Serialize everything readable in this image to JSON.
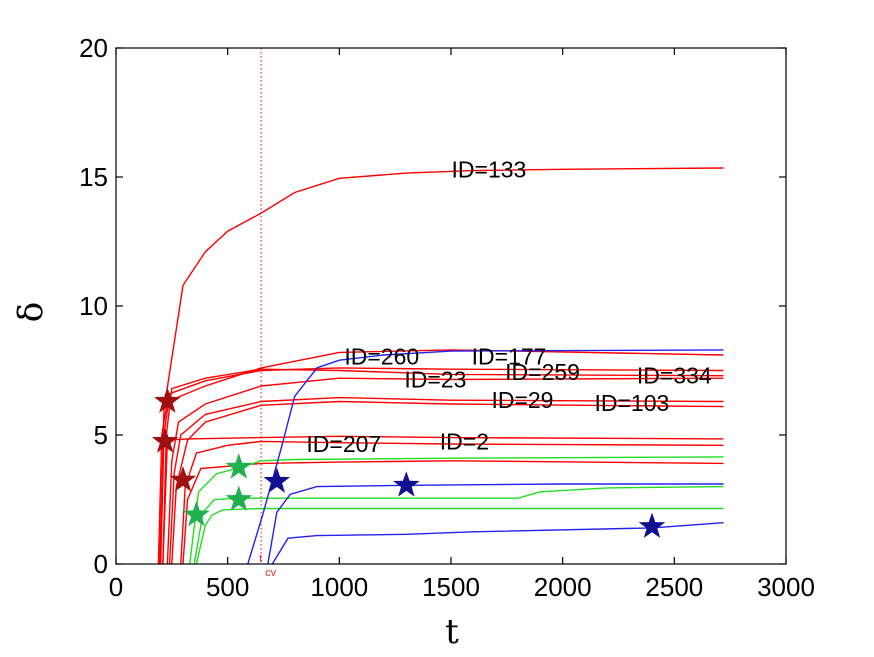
{
  "chart_data": {
    "type": "line",
    "xlabel": "t",
    "ylabel": "δ",
    "xlim": [
      0,
      3000
    ],
    "ylim": [
      0,
      20
    ],
    "xticks": [
      0,
      500,
      1000,
      1500,
      2000,
      2500,
      3000
    ],
    "yticks": [
      0,
      5,
      10,
      15,
      20
    ],
    "grid": false,
    "vline": {
      "x": 650,
      "label": "t",
      "sublabel": "cv",
      "color": "#ff3030"
    },
    "colors": {
      "red": "#ff0000",
      "green": "#22dd22",
      "blue": "#2222ee",
      "star_red": "#a01010",
      "star_green": "#20b050",
      "star_blue": "#101090"
    },
    "series": [
      {
        "color": "red",
        "values": [
          [
            195,
            0
          ],
          [
            215,
            6
          ],
          [
            300,
            10.8
          ],
          [
            400,
            12.1
          ],
          [
            500,
            12.9
          ],
          [
            650,
            13.6
          ],
          [
            800,
            14.4
          ],
          [
            1000,
            14.95
          ],
          [
            1300,
            15.15
          ],
          [
            1600,
            15.25
          ],
          [
            2000,
            15.3
          ],
          [
            2720,
            15.35
          ]
        ]
      },
      {
        "color": "red",
        "values": [
          [
            190,
            0
          ],
          [
            205,
            5
          ],
          [
            230,
            6.3
          ],
          [
            400,
            6.9
          ],
          [
            650,
            7.6
          ],
          [
            1000,
            8.2
          ],
          [
            1500,
            8.3
          ],
          [
            2720,
            8.1
          ]
        ]
      },
      {
        "color": "red",
        "values": [
          [
            200,
            0
          ],
          [
            215,
            5
          ],
          [
            240,
            6.6
          ],
          [
            400,
            7.1
          ],
          [
            650,
            7.5
          ],
          [
            1000,
            7.6
          ],
          [
            1500,
            7.55
          ],
          [
            2720,
            7.5
          ]
        ]
      },
      {
        "color": "red",
        "values": [
          [
            210,
            0
          ],
          [
            225,
            5
          ],
          [
            250,
            6.8
          ],
          [
            400,
            7.2
          ],
          [
            650,
            7.55
          ],
          [
            1000,
            7.5
          ],
          [
            1500,
            7.35
          ],
          [
            2720,
            7.3
          ]
        ]
      },
      {
        "color": "red",
        "values": [
          [
            230,
            0
          ],
          [
            250,
            4
          ],
          [
            280,
            5.5
          ],
          [
            400,
            6.2
          ],
          [
            650,
            6.9
          ],
          [
            1000,
            7.2
          ],
          [
            1500,
            7.15
          ],
          [
            2720,
            7.2
          ]
        ]
      },
      {
        "color": "red",
        "values": [
          [
            240,
            0
          ],
          [
            260,
            3.5
          ],
          [
            290,
            5.0
          ],
          [
            400,
            5.8
          ],
          [
            650,
            6.3
          ],
          [
            1000,
            6.45
          ],
          [
            1500,
            6.35
          ],
          [
            2720,
            6.3
          ]
        ]
      },
      {
        "color": "red",
        "values": [
          [
            250,
            0
          ],
          [
            270,
            3
          ],
          [
            320,
            4.8
          ],
          [
            400,
            5.5
          ],
          [
            650,
            6.15
          ],
          [
            1000,
            6.3
          ],
          [
            1500,
            6.2
          ],
          [
            2720,
            6.1
          ]
        ]
      },
      {
        "color": "red",
        "values": [
          [
            210,
            0
          ],
          [
            230,
            4.8
          ],
          [
            320,
            4.85
          ],
          [
            650,
            4.9
          ],
          [
            1000,
            4.95
          ],
          [
            1500,
            4.9
          ],
          [
            2720,
            4.85
          ]
        ]
      },
      {
        "color": "red",
        "values": [
          [
            290,
            0
          ],
          [
            310,
            3
          ],
          [
            360,
            4.3
          ],
          [
            500,
            4.6
          ],
          [
            650,
            4.75
          ],
          [
            1000,
            4.7
          ],
          [
            1500,
            4.65
          ],
          [
            2720,
            4.6
          ]
        ]
      },
      {
        "color": "red",
        "values": [
          [
            300,
            0
          ],
          [
            320,
            2.5
          ],
          [
            380,
            3.7
          ],
          [
            650,
            3.9
          ],
          [
            1000,
            3.95
          ],
          [
            1500,
            4.0
          ],
          [
            2720,
            3.9
          ]
        ]
      },
      {
        "color": "green",
        "values": [
          [
            330,
            0
          ],
          [
            370,
            2.8
          ],
          [
            450,
            3.5
          ],
          [
            560,
            3.75
          ],
          [
            650,
            4.0
          ],
          [
            800,
            4.05
          ],
          [
            1500,
            4.1
          ],
          [
            2720,
            4.15
          ]
        ]
      },
      {
        "color": "green",
        "values": [
          [
            350,
            0
          ],
          [
            390,
            2
          ],
          [
            440,
            2.5
          ],
          [
            560,
            2.55
          ],
          [
            1000,
            2.55
          ],
          [
            1800,
            2.55
          ],
          [
            1900,
            2.8
          ],
          [
            2200,
            2.95
          ],
          [
            2720,
            3.0
          ]
        ]
      },
      {
        "color": "green",
        "values": [
          [
            360,
            0
          ],
          [
            400,
            1.5
          ],
          [
            430,
            1.9
          ],
          [
            480,
            2.1
          ],
          [
            650,
            2.15
          ],
          [
            1000,
            2.15
          ],
          [
            2720,
            2.15
          ]
        ]
      },
      {
        "color": "blue",
        "values": [
          [
            590,
            0
          ],
          [
            660,
            2
          ],
          [
            740,
            4.5
          ],
          [
            800,
            6.5
          ],
          [
            900,
            7.6
          ],
          [
            1000,
            7.9
          ],
          [
            1200,
            8.1
          ],
          [
            1500,
            8.25
          ],
          [
            2720,
            8.3
          ]
        ]
      },
      {
        "color": "blue",
        "values": [
          [
            680,
            0
          ],
          [
            720,
            2
          ],
          [
            780,
            2.7
          ],
          [
            900,
            3.0
          ],
          [
            1300,
            3.05
          ],
          [
            2000,
            3.1
          ],
          [
            2720,
            3.1
          ]
        ]
      },
      {
        "color": "blue",
        "values": [
          [
            700,
            0
          ],
          [
            770,
            1.0
          ],
          [
            900,
            1.1
          ],
          [
            1300,
            1.15
          ],
          [
            1600,
            1.25
          ],
          [
            2400,
            1.4
          ],
          [
            2720,
            1.6
          ]
        ]
      }
    ],
    "stars": [
      {
        "x": 230,
        "y": 6.3,
        "color": "star_red"
      },
      {
        "x": 220,
        "y": 4.75,
        "color": "star_red"
      },
      {
        "x": 300,
        "y": 3.25,
        "color": "star_red"
      },
      {
        "x": 550,
        "y": 3.75,
        "color": "star_green"
      },
      {
        "x": 550,
        "y": 2.5,
        "color": "star_green"
      },
      {
        "x": 360,
        "y": 1.9,
        "color": "star_green"
      },
      {
        "x": 720,
        "y": 3.2,
        "color": "star_blue"
      },
      {
        "x": 1300,
        "y": 3.05,
        "color": "star_blue"
      },
      {
        "x": 2400,
        "y": 1.45,
        "color": "star_blue"
      }
    ],
    "annotations": [
      {
        "text": "ID=133",
        "x": 1670,
        "y": 15.3
      },
      {
        "text": "ID=260",
        "x": 1190,
        "y": 8.05
      },
      {
        "text": "ID=177",
        "x": 1760,
        "y": 8.05
      },
      {
        "text": "ID=23",
        "x": 1430,
        "y": 7.15
      },
      {
        "text": "ID=259",
        "x": 1910,
        "y": 7.45
      },
      {
        "text": "ID=334",
        "x": 2500,
        "y": 7.3
      },
      {
        "text": "ID=29",
        "x": 1820,
        "y": 6.35
      },
      {
        "text": "ID=103",
        "x": 2310,
        "y": 6.25
      },
      {
        "text": "ID=207",
        "x": 1020,
        "y": 4.65
      },
      {
        "text": "ID=2",
        "x": 1560,
        "y": 4.75
      }
    ]
  }
}
